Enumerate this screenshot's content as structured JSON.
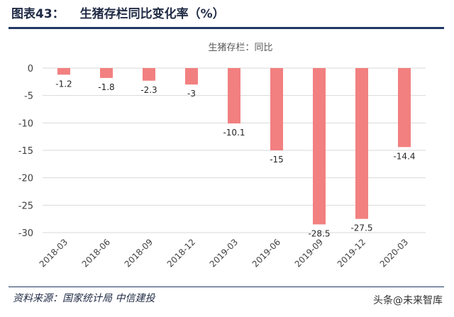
{
  "header": {
    "figure_label": "图表43：",
    "figure_title": "生猪存栏同比变化率（%）"
  },
  "chart_data": {
    "type": "bar",
    "title": "生猪存栏：同比",
    "xlabel": "",
    "ylabel": "",
    "categories": [
      "2018-03",
      "2018-06",
      "2018-09",
      "2018-12",
      "2019-03",
      "2019-06",
      "2019-09",
      "2019-12",
      "2020-03"
    ],
    "values": [
      -1.2,
      -1.8,
      -2.3,
      -3,
      -10.1,
      -15,
      -28.5,
      -27.5,
      -14.4
    ],
    "value_labels": [
      "-1.2",
      "-1.8",
      "-2.3",
      "-3",
      "-10.1",
      "-15",
      "-28.5",
      "-27.5",
      "-14.4"
    ],
    "ylim": [
      -30,
      0
    ],
    "yticks": [
      "0",
      "-5",
      "-10",
      "-15",
      "-20",
      "-25",
      "-30"
    ],
    "ytick_values": [
      0,
      -5,
      -10,
      -15,
      -20,
      -25,
      -30
    ],
    "grid": true,
    "legend": "none",
    "bar_color": "#f28080"
  },
  "footer": {
    "source": "资料来源：国家统计局  中信建投",
    "watermark": "头条@未来智库"
  }
}
